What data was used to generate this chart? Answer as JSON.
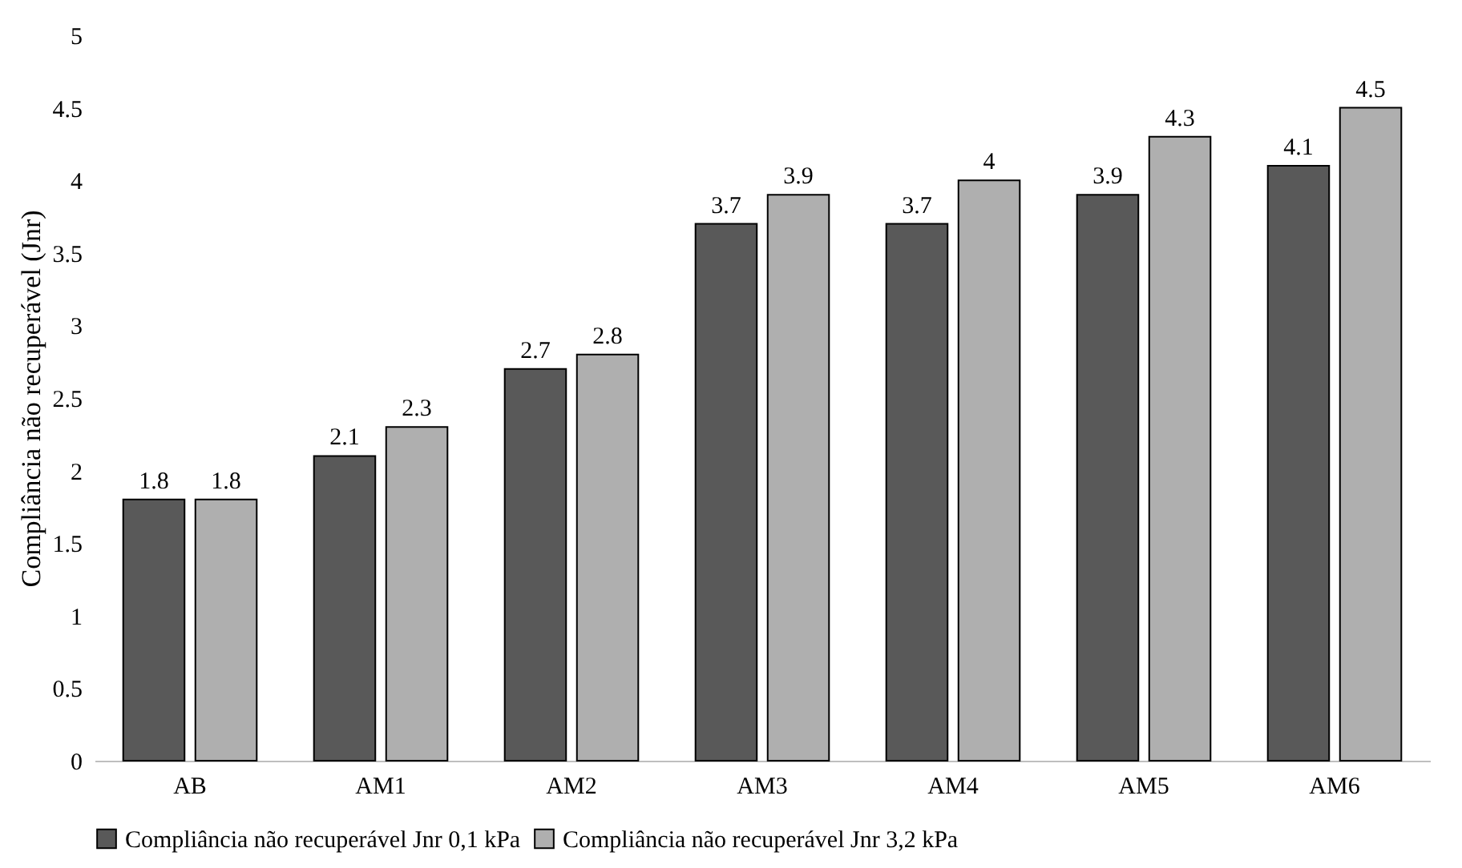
{
  "chart_data": {
    "type": "bar",
    "ylabel": "Compliância não recuperável (Jnr)",
    "categories": [
      "AB",
      "AM1",
      "AM2",
      "AM3",
      "AM4",
      "AM5",
      "AM6"
    ],
    "series": [
      {
        "name": "Compliância não recuperável Jnr 0,1 kPa",
        "color": "#595959",
        "values": [
          1.8,
          2.1,
          2.7,
          3.7,
          3.7,
          3.9,
          4.1
        ]
      },
      {
        "name": "Compliância não recuperável Jnr 3,2 kPa",
        "color": "#afafaf",
        "values": [
          1.8,
          2.3,
          2.8,
          3.9,
          4,
          4.3,
          4.5
        ]
      }
    ],
    "ylim": [
      0,
      5
    ],
    "yticks": [
      0,
      0.5,
      1,
      1.5,
      2,
      2.5,
      3,
      3.5,
      4,
      4.5,
      5
    ],
    "data_labels": true,
    "grid": false,
    "legend": "bottom"
  }
}
